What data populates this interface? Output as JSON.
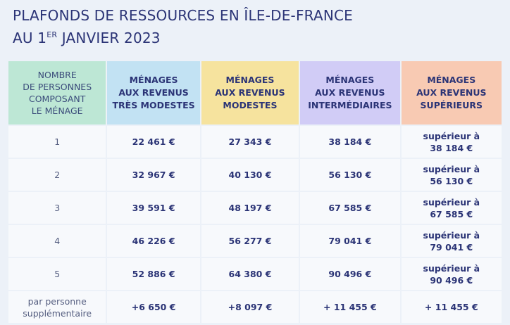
{
  "title": {
    "line1": "PLAFONDS DE RESSOURCES EN ÎLE-DE-FRANCE",
    "line2_start": "AU 1",
    "line2_sup": "ER",
    "line2_end": "JANVIER 2023"
  },
  "table": {
    "headers": [
      [
        "NOMBRE",
        "DE PERSONNES",
        "COMPOSANT",
        "LE MÉNAGE"
      ],
      [
        "MÉNAGES",
        "AUX REVENUS",
        "TRÈS MODESTES"
      ],
      [
        "MÉNAGES",
        "AUX REVENUS",
        "MODESTES"
      ],
      [
        "MÉNAGES",
        "AUX REVENUS",
        "INTERMÉDIAIRES"
      ],
      [
        "MÉNAGES",
        "AUX REVENUS",
        "SUPÉRIEURS"
      ]
    ],
    "rows": [
      [
        [
          "1"
        ],
        [
          "22 461 €"
        ],
        [
          "27 343 €"
        ],
        [
          "38 184 €"
        ],
        [
          "supérieur à",
          "38 184 €"
        ]
      ],
      [
        [
          "2"
        ],
        [
          "32 967 €"
        ],
        [
          "40 130 €"
        ],
        [
          "56 130 €"
        ],
        [
          "supérieur à",
          "56 130 €"
        ]
      ],
      [
        [
          "3"
        ],
        [
          "39 591 €"
        ],
        [
          "48 197 €"
        ],
        [
          "67 585 €"
        ],
        [
          "supérieur à",
          "67 585 €"
        ]
      ],
      [
        [
          "4"
        ],
        [
          "46 226 €"
        ],
        [
          "56 277 €"
        ],
        [
          "79 041 €"
        ],
        [
          "supérieur à",
          "79 041 €"
        ]
      ],
      [
        [
          "5"
        ],
        [
          "52 886 €"
        ],
        [
          "64 380 €"
        ],
        [
          "90 496 €"
        ],
        [
          "supérieur à",
          "90 496 €"
        ]
      ],
      [
        [
          "par personne",
          "supplémentaire"
        ],
        [
          "+6 650 €"
        ],
        [
          "+8 097 €"
        ],
        [
          "+ 11 455 €"
        ],
        [
          "+ 11 455 €"
        ]
      ]
    ]
  }
}
